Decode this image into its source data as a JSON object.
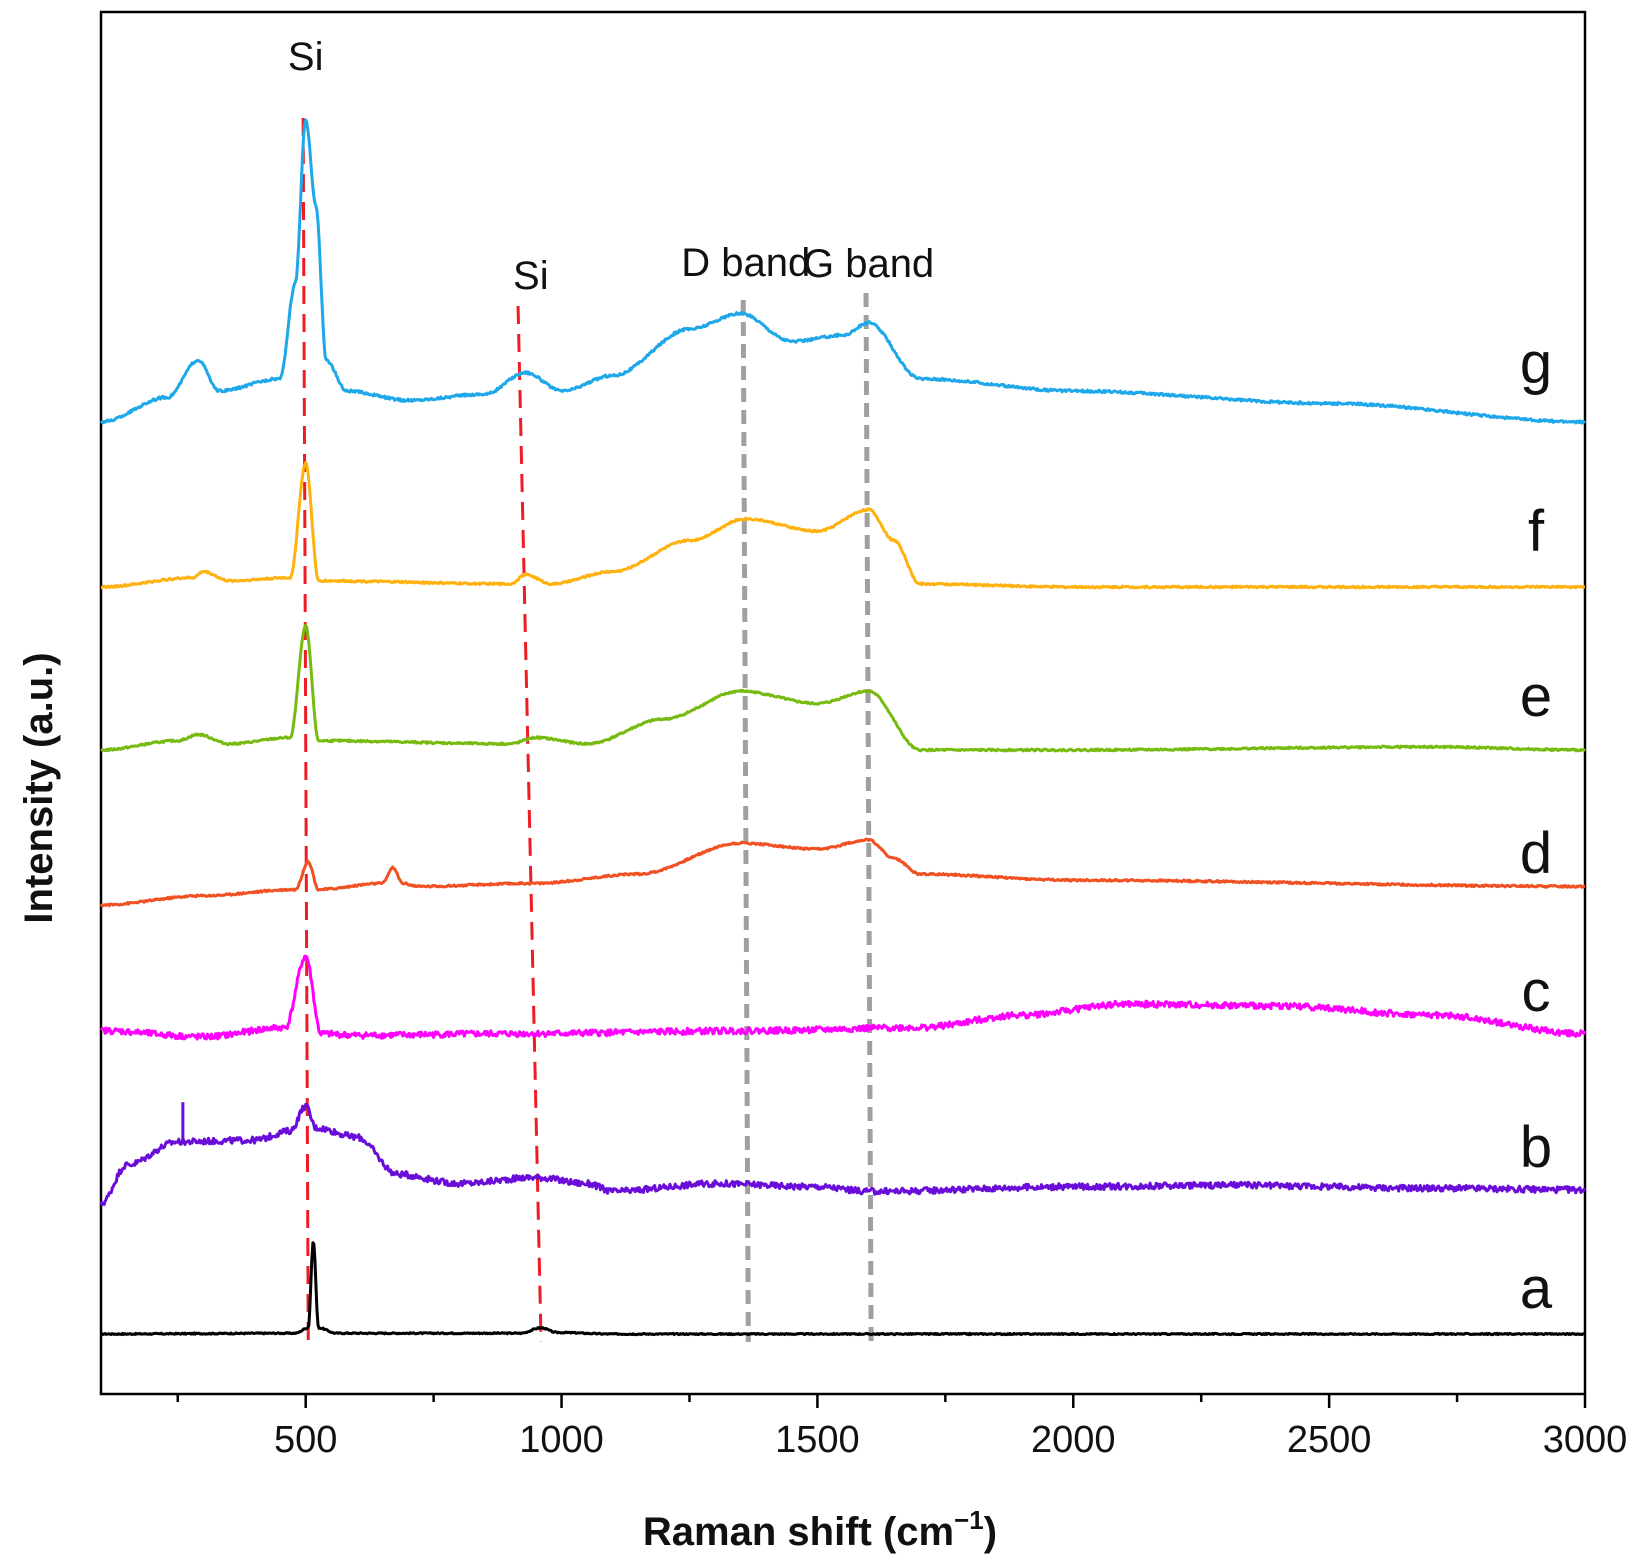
{
  "chart_data": {
    "type": "line",
    "xlabel": "Raman shift (cm",
    "xlabel_sup": "−1",
    "xlabel_close": ")",
    "ylabel": "Intensity (a.u.)",
    "xlim": [
      100,
      3000
    ],
    "x_ticks": [
      500,
      1000,
      1500,
      2000,
      2500,
      3000
    ],
    "y_ticks_shown": false,
    "grid": false,
    "annotations": [
      {
        "text": "Si",
        "x": 500
      },
      {
        "text": "Si",
        "x": 940
      },
      {
        "text": "D band",
        "x": 1360
      },
      {
        "text": "G band",
        "x": 1600
      }
    ],
    "reference_lines": [
      {
        "kind": "Si",
        "color": "#ee1c25",
        "style": "dashed",
        "x_top": 495,
        "x_bottom": 505
      },
      {
        "kind": "Si",
        "color": "#ee1c25",
        "style": "dashed",
        "x_top": 915,
        "x_bottom": 960
      },
      {
        "kind": "D band",
        "color": "#a0a0a0",
        "style": "dashed",
        "x_top": 1355,
        "x_bottom": 1365
      },
      {
        "kind": "G band",
        "color": "#a0a0a0",
        "style": "dashed",
        "x_top": 1595,
        "x_bottom": 1605
      }
    ],
    "series": [
      {
        "label": "a",
        "color": "#000000",
        "baseline": 0,
        "noise": 0.4,
        "points": [
          [
            100,
            0
          ],
          [
            480,
            0.5
          ],
          [
            505,
            4
          ],
          [
            515,
            60
          ],
          [
            525,
            4
          ],
          [
            560,
            0.5
          ],
          [
            920,
            0.5
          ],
          [
            960,
            4
          ],
          [
            990,
            1
          ],
          [
            1100,
            0
          ],
          [
            3000,
            0
          ]
        ]
      },
      {
        "label": "b",
        "color": "#6a0dd8",
        "baseline": 1,
        "noise": 2,
        "points": [
          [
            100,
            -5
          ],
          [
            150,
            20
          ],
          [
            250,
            35
          ],
          [
            400,
            36
          ],
          [
            470,
            42
          ],
          [
            500,
            58
          ],
          [
            520,
            44
          ],
          [
            600,
            38
          ],
          [
            680,
            14
          ],
          [
            800,
            8
          ],
          [
            950,
            12
          ],
          [
            1050,
            8
          ],
          [
            1100,
            3
          ],
          [
            1300,
            8
          ],
          [
            1500,
            6
          ],
          [
            1600,
            3
          ],
          [
            2000,
            6
          ],
          [
            2300,
            7
          ],
          [
            2700,
            5
          ],
          [
            3000,
            4
          ]
        ]
      },
      {
        "label": "c",
        "color": "#ff00ff",
        "baseline": 2,
        "noise": 2,
        "points": [
          [
            100,
            8
          ],
          [
            300,
            4
          ],
          [
            460,
            10
          ],
          [
            500,
            56
          ],
          [
            530,
            6
          ],
          [
            600,
            5
          ],
          [
            900,
            6
          ],
          [
            1400,
            8
          ],
          [
            1700,
            10
          ],
          [
            1900,
            18
          ],
          [
            2100,
            25
          ],
          [
            2400,
            24
          ],
          [
            2700,
            18
          ],
          [
            3000,
            6
          ]
        ]
      },
      {
        "label": "d",
        "color": "#f05022",
        "baseline": 3,
        "noise": 0.6,
        "points": [
          [
            100,
            0
          ],
          [
            300,
            6
          ],
          [
            480,
            10
          ],
          [
            505,
            28
          ],
          [
            525,
            10
          ],
          [
            650,
            14
          ],
          [
            670,
            24
          ],
          [
            690,
            14
          ],
          [
            720,
            12
          ],
          [
            950,
            14
          ],
          [
            1150,
            20
          ],
          [
            1350,
            40
          ],
          [
            1500,
            36
          ],
          [
            1600,
            42
          ],
          [
            1650,
            30
          ],
          [
            1700,
            20
          ],
          [
            2000,
            16
          ],
          [
            3000,
            12
          ]
        ]
      },
      {
        "label": "e",
        "color": "#77bb11",
        "baseline": 4,
        "noise": 0.6,
        "points": [
          [
            100,
            0
          ],
          [
            250,
            6
          ],
          [
            290,
            10
          ],
          [
            350,
            4
          ],
          [
            470,
            8
          ],
          [
            500,
            80
          ],
          [
            525,
            6
          ],
          [
            900,
            4
          ],
          [
            950,
            8
          ],
          [
            1050,
            4
          ],
          [
            1200,
            20
          ],
          [
            1350,
            38
          ],
          [
            1500,
            30
          ],
          [
            1600,
            38
          ],
          [
            1700,
            0
          ],
          [
            2000,
            0
          ],
          [
            2700,
            2
          ],
          [
            3000,
            0
          ]
        ]
      },
      {
        "label": "f",
        "color": "#ffb20f",
        "baseline": 5,
        "noise": 0.6,
        "points": [
          [
            100,
            0
          ],
          [
            280,
            6
          ],
          [
            300,
            10
          ],
          [
            350,
            4
          ],
          [
            470,
            6
          ],
          [
            500,
            80
          ],
          [
            525,
            4
          ],
          [
            900,
            2
          ],
          [
            930,
            8
          ],
          [
            980,
            2
          ],
          [
            1100,
            10
          ],
          [
            1250,
            30
          ],
          [
            1360,
            44
          ],
          [
            1500,
            36
          ],
          [
            1600,
            50
          ],
          [
            1650,
            30
          ],
          [
            1700,
            2
          ],
          [
            2000,
            0
          ],
          [
            3000,
            0
          ]
        ]
      },
      {
        "label": "g",
        "color": "#1ea7e9",
        "baseline": 6,
        "noise": 0.8,
        "points": [
          [
            100,
            0
          ],
          [
            230,
            16
          ],
          [
            290,
            40
          ],
          [
            330,
            20
          ],
          [
            450,
            28
          ],
          [
            480,
            90
          ],
          [
            500,
            195
          ],
          [
            520,
            140
          ],
          [
            540,
            40
          ],
          [
            580,
            20
          ],
          [
            700,
            14
          ],
          [
            850,
            18
          ],
          [
            930,
            32
          ],
          [
            1000,
            20
          ],
          [
            1100,
            30
          ],
          [
            1250,
            60
          ],
          [
            1350,
            70
          ],
          [
            1450,
            52
          ],
          [
            1550,
            56
          ],
          [
            1600,
            64
          ],
          [
            1700,
            28
          ],
          [
            2000,
            20
          ],
          [
            2500,
            12
          ],
          [
            3000,
            0
          ]
        ]
      }
    ]
  }
}
